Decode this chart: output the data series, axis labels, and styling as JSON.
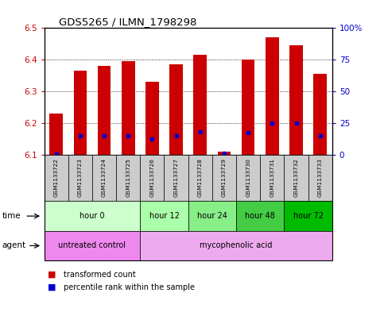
{
  "title": "GDS5265 / ILMN_1798298",
  "samples": [
    "GSM1133722",
    "GSM1133723",
    "GSM1133724",
    "GSM1133725",
    "GSM1133726",
    "GSM1133727",
    "GSM1133728",
    "GSM1133729",
    "GSM1133730",
    "GSM1133731",
    "GSM1133732",
    "GSM1133733"
  ],
  "bar_values": [
    6.23,
    6.365,
    6.38,
    6.395,
    6.33,
    6.385,
    6.415,
    6.11,
    6.4,
    6.47,
    6.445,
    6.355
  ],
  "percentile_values": [
    0.5,
    15,
    15,
    15,
    12,
    15,
    18,
    1,
    17,
    25,
    25,
    15
  ],
  "bar_bottom": 6.1,
  "ylim": [
    6.1,
    6.5
  ],
  "yticks": [
    6.1,
    6.2,
    6.3,
    6.4,
    6.5
  ],
  "right_yticks": [
    0,
    25,
    50,
    75,
    100
  ],
  "right_ylabels": [
    "0",
    "25",
    "50",
    "75",
    "100%"
  ],
  "bar_color": "#cc0000",
  "percentile_color": "#0000cc",
  "time_groups": [
    {
      "label": "hour 0",
      "start": 0,
      "end": 4,
      "color": "#ccffcc"
    },
    {
      "label": "hour 12",
      "start": 4,
      "end": 6,
      "color": "#aaffaa"
    },
    {
      "label": "hour 24",
      "start": 6,
      "end": 8,
      "color": "#88ee88"
    },
    {
      "label": "hour 48",
      "start": 8,
      "end": 10,
      "color": "#44cc44"
    },
    {
      "label": "hour 72",
      "start": 10,
      "end": 12,
      "color": "#00bb00"
    }
  ],
  "agent_defs": [
    {
      "label": "untreated control",
      "start": 0,
      "end": 4,
      "color": "#ee88ee"
    },
    {
      "label": "mycophenolic acid",
      "start": 4,
      "end": 12,
      "color": "#eeaaee"
    }
  ],
  "ylabel_color": "#cc0000",
  "right_ylabel_color": "#0000cc",
  "bar_color_legend": "#cc0000",
  "pct_color_legend": "#0000cc",
  "background_color": "#ffffff",
  "sample_bg_color": "#cccccc",
  "grid_color": "#000000"
}
